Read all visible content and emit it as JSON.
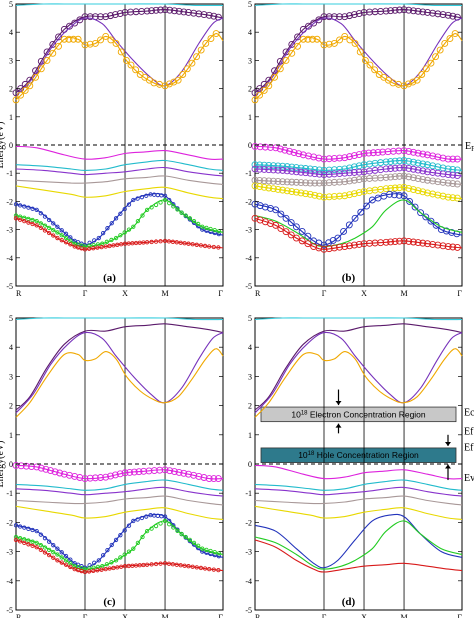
{
  "chart_data": [
    {
      "type": "line",
      "panel_label": "(a)",
      "ylabel": "Energy(eV)",
      "ylim": [
        -5,
        5
      ],
      "yticks": [
        "-5",
        "-4",
        "-3",
        "-2",
        "-1",
        "0",
        "1",
        "2",
        "3",
        "4",
        "5"
      ],
      "kpoints": [
        "R",
        "Γ",
        "X",
        "M",
        "Γ"
      ],
      "kpositions": [
        0,
        1,
        1.58,
        2.16,
        3.0
      ],
      "fermi_level": 0,
      "fermi_label": "",
      "highlight": {
        "band": "cond_orange",
        "color": "#E8A000",
        "size": "large"
      },
      "highlight2": {
        "band": "cond_purple",
        "color": "#5B1A6B",
        "size": "large"
      }
    },
    {
      "type": "line",
      "panel_label": "(b)",
      "ylabel": "",
      "ylim": [
        -5,
        5
      ],
      "yticks": [
        "-5",
        "-4",
        "-3",
        "-2",
        "-1",
        "0",
        "1",
        "2",
        "3",
        "4",
        "5"
      ],
      "kpoints": [
        "R",
        "Γ",
        "X",
        "M",
        "Γ"
      ],
      "kpositions": [
        0,
        1,
        1.58,
        2.16,
        3.0
      ],
      "fermi_level": 0,
      "fermi_label": "E",
      "fermi_label_sub": "F",
      "highlight": {
        "band": "val_many",
        "color": "#C80060",
        "size": "large"
      }
    },
    {
      "type": "line",
      "panel_label": "(c)",
      "ylabel": "Energy(eV)",
      "ylim": [
        -5,
        5
      ],
      "yticks": [
        "-5",
        "-4",
        "-3",
        "-2",
        "-1",
        "0",
        "1",
        "2",
        "3",
        "4",
        "5"
      ],
      "kpoints": [
        "R",
        "Γ",
        "X",
        "M",
        "Γ"
      ],
      "kpositions": [
        0,
        1,
        1.58,
        2.16,
        3.0
      ],
      "fermi_level": 0,
      "fermi_label": "",
      "highlight": {
        "band": "val_magenta",
        "color": "#E000E0",
        "size": "large"
      }
    },
    {
      "type": "line",
      "panel_label": "(d)",
      "ylabel": "",
      "ylim": [
        -5,
        5
      ],
      "yticks": [
        "-5",
        "-4",
        "-3",
        "-2",
        "-1",
        "0",
        "1",
        "2",
        "3",
        "4",
        "5"
      ],
      "kpoints": [
        "R",
        "Γ",
        "X",
        "M",
        "Γ"
      ],
      "kpositions": [
        0,
        1,
        1.58,
        2.16,
        3.0
      ],
      "fermi_level": 0,
      "fermi_label": "",
      "regions": [
        {
          "text_pre": "10",
          "text_sup": "18",
          "text_post": " Electron Concentration Region",
          "y_low": 1.45,
          "y_high": 1.95,
          "fill": "#C8C8C8"
        },
        {
          "text_pre": "10",
          "text_sup": "18",
          "text_post": " Hole Concentration Region",
          "y_low": 0.05,
          "y_high": 0.55,
          "fill": "#2E7A8C"
        }
      ],
      "side_labels": {
        "ec": "Ec",
        "ef1": "Ef",
        "ef2": "Ef",
        "ev": "Ev"
      }
    }
  ],
  "bands": [
    {
      "name": "cyan_top",
      "color": "#33CCDD",
      "pts": [
        [
          0,
          4.95
        ],
        [
          0.4,
          5.0
        ],
        [
          0.7,
          5.0
        ],
        [
          1,
          5.0
        ],
        [
          1.58,
          5.0
        ],
        [
          2.16,
          5.0
        ],
        [
          2.6,
          4.95
        ],
        [
          3,
          4.95
        ]
      ]
    },
    {
      "name": "cond_purple",
      "color": "#5B1A6B",
      "pts": [
        [
          0,
          1.85
        ],
        [
          0.2,
          2.3
        ],
        [
          0.45,
          3.3
        ],
        [
          0.7,
          4.1
        ],
        [
          1,
          4.55
        ],
        [
          1.3,
          4.55
        ],
        [
          1.58,
          4.7
        ],
        [
          1.9,
          4.75
        ],
        [
          2.16,
          4.8
        ],
        [
          2.5,
          4.7
        ],
        [
          2.8,
          4.6
        ],
        [
          3,
          4.5
        ]
      ]
    },
    {
      "name": "cond_violet",
      "color": "#7733BB",
      "pts": [
        [
          0,
          1.75
        ],
        [
          0.25,
          2.4
        ],
        [
          0.5,
          3.4
        ],
        [
          0.75,
          4.1
        ],
        [
          1,
          4.5
        ],
        [
          1.25,
          4.3
        ],
        [
          1.45,
          3.7
        ],
        [
          1.7,
          3.0
        ],
        [
          1.95,
          2.4
        ],
        [
          2.16,
          2.1
        ],
        [
          2.4,
          2.6
        ],
        [
          2.65,
          3.6
        ],
        [
          2.85,
          4.3
        ],
        [
          3,
          4.5
        ]
      ]
    },
    {
      "name": "cond_orange",
      "color": "#F0A800",
      "pts": [
        [
          0,
          1.6
        ],
        [
          0.2,
          2.1
        ],
        [
          0.45,
          3.0
        ],
        [
          0.7,
          3.75
        ],
        [
          0.9,
          3.75
        ],
        [
          1,
          3.55
        ],
        [
          1.15,
          3.6
        ],
        [
          1.3,
          3.85
        ],
        [
          1.45,
          3.6
        ],
        [
          1.6,
          3.0
        ],
        [
          1.8,
          2.5
        ],
        [
          2.0,
          2.2
        ],
        [
          2.16,
          2.1
        ],
        [
          2.35,
          2.3
        ],
        [
          2.55,
          2.9
        ],
        [
          2.75,
          3.6
        ],
        [
          2.9,
          3.95
        ],
        [
          3,
          3.7
        ]
      ]
    },
    {
      "name": "val_magenta",
      "color": "#DD22DD",
      "pts": [
        [
          0,
          -0.05
        ],
        [
          0.3,
          -0.1
        ],
        [
          0.7,
          -0.35
        ],
        [
          1,
          -0.5
        ],
        [
          1.3,
          -0.45
        ],
        [
          1.58,
          -0.3
        ],
        [
          1.85,
          -0.25
        ],
        [
          2.16,
          -0.2
        ],
        [
          2.5,
          -0.35
        ],
        [
          2.8,
          -0.5
        ],
        [
          3,
          -0.5
        ]
      ]
    },
    {
      "name": "val_cyan",
      "color": "#22BBCC",
      "pts": [
        [
          0,
          -0.7
        ],
        [
          0.4,
          -0.75
        ],
        [
          0.8,
          -0.85
        ],
        [
          1,
          -0.9
        ],
        [
          1.3,
          -0.85
        ],
        [
          1.58,
          -0.7
        ],
        [
          1.9,
          -0.6
        ],
        [
          2.16,
          -0.55
        ],
        [
          2.5,
          -0.7
        ],
        [
          2.8,
          -0.85
        ],
        [
          3,
          -0.9
        ]
      ]
    },
    {
      "name": "val_purple",
      "color": "#8833CC",
      "pts": [
        [
          0,
          -0.85
        ],
        [
          0.4,
          -0.9
        ],
        [
          0.8,
          -1.0
        ],
        [
          1,
          -1.05
        ],
        [
          1.3,
          -1.0
        ],
        [
          1.58,
          -0.95
        ],
        [
          1.9,
          -0.85
        ],
        [
          2.16,
          -0.8
        ],
        [
          2.5,
          -0.95
        ],
        [
          2.8,
          -1.05
        ],
        [
          3,
          -1.1
        ]
      ]
    },
    {
      "name": "val_grey",
      "color": "#A89898",
      "pts": [
        [
          0,
          -1.25
        ],
        [
          0.4,
          -1.3
        ],
        [
          0.8,
          -1.35
        ],
        [
          1,
          -1.35
        ],
        [
          1.3,
          -1.3
        ],
        [
          1.58,
          -1.2
        ],
        [
          1.9,
          -1.15
        ],
        [
          2.16,
          -1.1
        ],
        [
          2.5,
          -1.25
        ],
        [
          2.8,
          -1.35
        ],
        [
          3,
          -1.4
        ]
      ]
    },
    {
      "name": "val_yellow",
      "color": "#E8D800",
      "pts": [
        [
          0,
          -1.45
        ],
        [
          0.4,
          -1.6
        ],
        [
          0.8,
          -1.75
        ],
        [
          1,
          -1.85
        ],
        [
          1.3,
          -1.8
        ],
        [
          1.58,
          -1.65
        ],
        [
          1.9,
          -1.55
        ],
        [
          2.16,
          -1.5
        ],
        [
          2.5,
          -1.7
        ],
        [
          2.8,
          -1.85
        ],
        [
          3,
          -1.9
        ]
      ]
    },
    {
      "name": "val_blue",
      "color": "#2233BB",
      "pts": [
        [
          0,
          -2.1
        ],
        [
          0.3,
          -2.3
        ],
        [
          0.6,
          -2.9
        ],
        [
          0.85,
          -3.4
        ],
        [
          1,
          -3.55
        ],
        [
          1.2,
          -3.3
        ],
        [
          1.45,
          -2.6
        ],
        [
          1.7,
          -1.95
        ],
        [
          1.95,
          -1.75
        ],
        [
          2.16,
          -1.8
        ],
        [
          2.4,
          -2.4
        ],
        [
          2.7,
          -3.0
        ],
        [
          3,
          -3.2
        ]
      ]
    },
    {
      "name": "val_green",
      "color": "#22CC22",
      "pts": [
        [
          0,
          -2.5
        ],
        [
          0.3,
          -2.7
        ],
        [
          0.6,
          -3.1
        ],
        [
          0.85,
          -3.5
        ],
        [
          1,
          -3.6
        ],
        [
          1.25,
          -3.5
        ],
        [
          1.45,
          -3.3
        ],
        [
          1.7,
          -2.9
        ],
        [
          1.9,
          -2.3
        ],
        [
          2.16,
          -1.95
        ],
        [
          2.4,
          -2.4
        ],
        [
          2.7,
          -2.9
        ],
        [
          3,
          -3.1
        ]
      ]
    },
    {
      "name": "val_red",
      "color": "#D81A1A",
      "pts": [
        [
          0,
          -2.6
        ],
        [
          0.3,
          -2.85
        ],
        [
          0.6,
          -3.3
        ],
        [
          0.85,
          -3.6
        ],
        [
          1,
          -3.7
        ],
        [
          1.3,
          -3.6
        ],
        [
          1.58,
          -3.5
        ],
        [
          1.9,
          -3.45
        ],
        [
          2.16,
          -3.4
        ],
        [
          2.5,
          -3.5
        ],
        [
          2.8,
          -3.6
        ],
        [
          3,
          -3.65
        ]
      ]
    }
  ],
  "panel_marked_bands": [
    [
      "cond_purple",
      "cond_orange",
      "val_blue",
      "val_green",
      "val_red"
    ],
    [
      "cond_purple",
      "cond_orange",
      "val_magenta",
      "val_cyan",
      "val_purple",
      "val_grey",
      "val_yellow",
      "val_blue",
      "val_red"
    ],
    [
      "val_magenta",
      "val_blue",
      "val_green",
      "val_red"
    ],
    []
  ]
}
